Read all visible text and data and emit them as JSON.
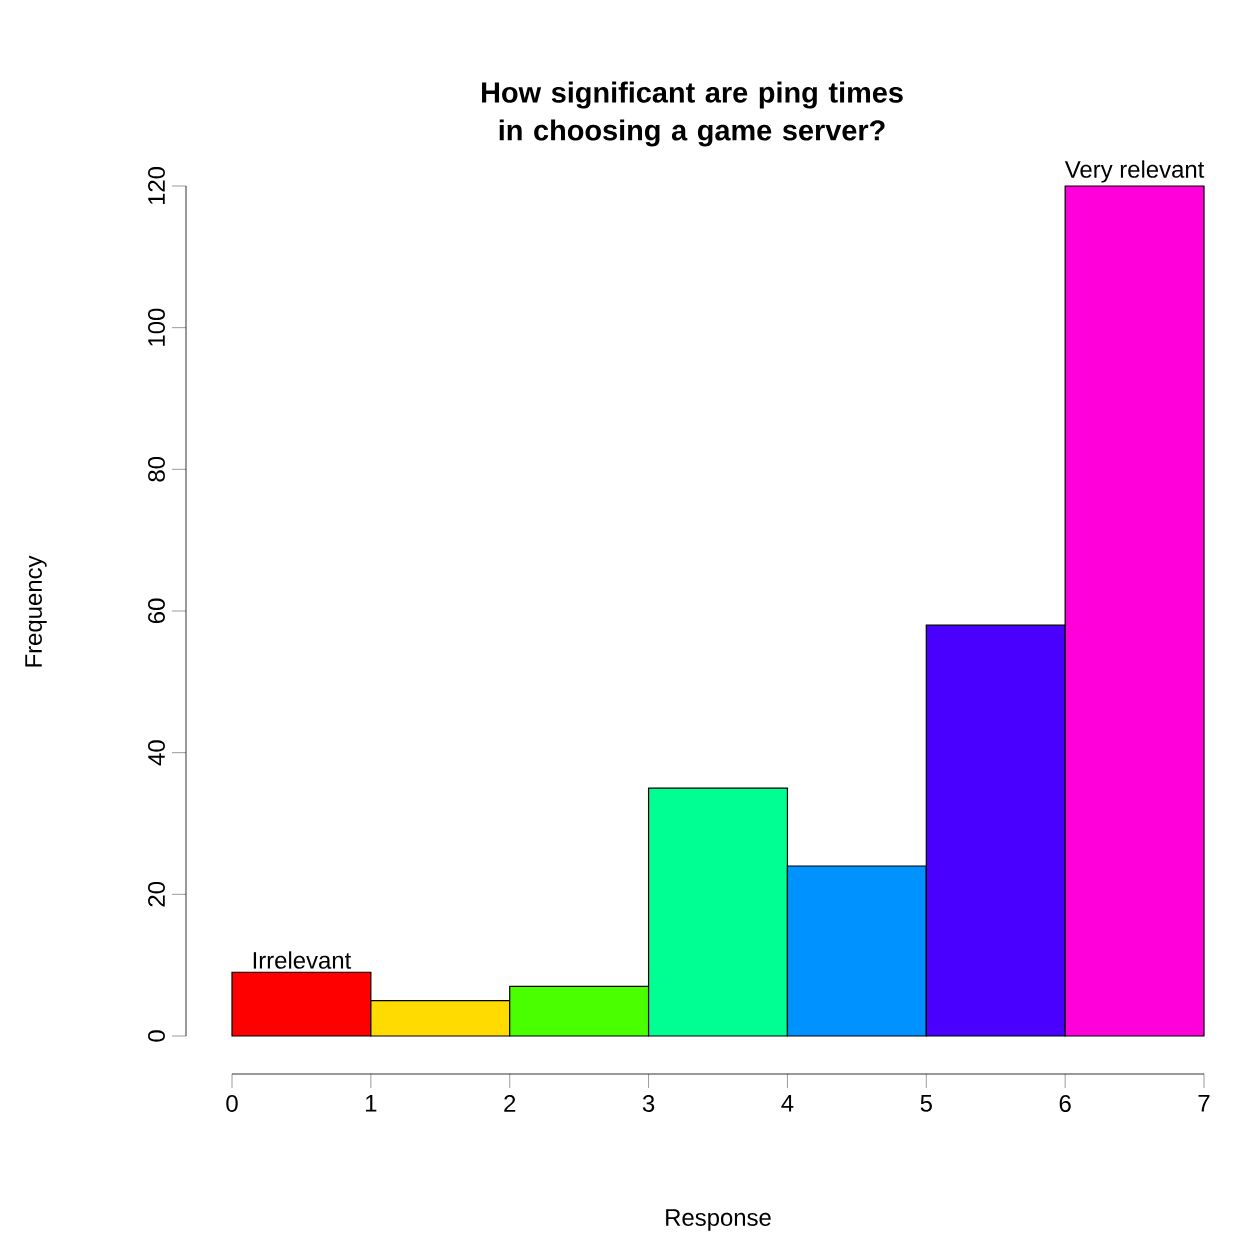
{
  "chart_data": {
    "type": "histogram",
    "title": "How significant are ping times in choosing a game server?",
    "xlabel": "Response",
    "ylabel": "Frequency",
    "bins": [
      0,
      1,
      2,
      3,
      4,
      5,
      6,
      7
    ],
    "values": [
      9,
      5,
      7,
      35,
      24,
      58,
      120
    ],
    "colors": [
      "#ff0000",
      "#ffdb00",
      "#49ff00",
      "#00ff92",
      "#0092ff",
      "#4900ff",
      "#ff00db"
    ],
    "xlim": [
      0,
      7
    ],
    "ylim": [
      0,
      120
    ],
    "xticks": [
      0,
      1,
      2,
      3,
      4,
      5,
      6,
      7
    ],
    "yticks": [
      0,
      20,
      40,
      60,
      80,
      100,
      120
    ],
    "annotations": [
      {
        "text": "Irrelevant",
        "x": 0.5,
        "y": 9
      },
      {
        "text": "Very relevant",
        "x": 6.5,
        "y": 120
      }
    ]
  }
}
